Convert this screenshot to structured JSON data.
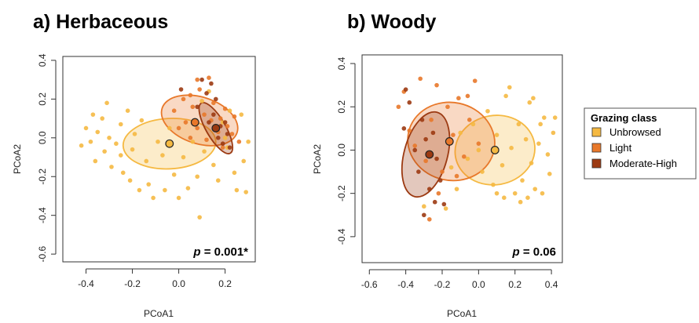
{
  "legend": {
    "title": "Grazing class",
    "entries": [
      {
        "label": "Unbrowsed",
        "color": "#f5b942"
      },
      {
        "label": "Light",
        "color": "#e8782a"
      },
      {
        "label": "Moderate-High",
        "color": "#9c3a12"
      }
    ]
  },
  "chart_data": [
    {
      "type": "scatter",
      "title": "a) Herbaceous",
      "xlabel": "PCoA1",
      "ylabel": "PCoA2",
      "xlim": [
        -0.5,
        0.33
      ],
      "ylim": [
        -0.64,
        0.42
      ],
      "xticks": [
        -0.4,
        -0.2,
        0.0,
        0.2
      ],
      "yticks": [
        -0.6,
        -0.4,
        -0.2,
        0.0,
        0.2,
        0.4
      ],
      "annotation": {
        "italic": "p",
        "text": " = 0.001*"
      },
      "series": [
        {
          "name": "Unbrowsed",
          "color": "#f5b942",
          "centroid": [
            -0.04,
            -0.03
          ],
          "ellipse": {
            "cx": -0.04,
            "cy": -0.03,
            "rx": 0.2,
            "ry": 0.13,
            "angle": 3
          },
          "points": [
            [
              -0.42,
              -0.04
            ],
            [
              -0.4,
              0.05
            ],
            [
              -0.38,
              -0.02
            ],
            [
              -0.37,
              0.12
            ],
            [
              -0.36,
              -0.12
            ],
            [
              -0.35,
              0.03
            ],
            [
              -0.33,
              0.1
            ],
            [
              -0.32,
              -0.07
            ],
            [
              -0.31,
              0.18
            ],
            [
              -0.3,
              0.0
            ],
            [
              -0.29,
              -0.15
            ],
            [
              -0.27,
              -0.03
            ],
            [
              -0.25,
              0.07
            ],
            [
              -0.24,
              -0.18
            ],
            [
              -0.22,
              0.14
            ],
            [
              -0.21,
              -0.22
            ],
            [
              -0.2,
              -0.06
            ],
            [
              -0.19,
              0.02
            ],
            [
              -0.17,
              -0.27
            ],
            [
              -0.16,
              0.09
            ],
            [
              -0.14,
              -0.12
            ],
            [
              -0.13,
              -0.24
            ],
            [
              -0.11,
              -0.31
            ],
            [
              -0.09,
              -0.02
            ],
            [
              -0.07,
              -0.09
            ],
            [
              -0.06,
              -0.27
            ],
            [
              -0.04,
              0.05
            ],
            [
              -0.02,
              -0.19
            ],
            [
              0.0,
              -0.31
            ],
            [
              0.02,
              -0.1
            ],
            [
              0.04,
              -0.26
            ],
            [
              0.06,
              -0.02
            ],
            [
              0.08,
              -0.2
            ],
            [
              0.1,
              0.19
            ],
            [
              0.11,
              -0.07
            ],
            [
              0.13,
              0.24
            ],
            [
              0.15,
              -0.14
            ],
            [
              0.17,
              -0.22
            ],
            [
              0.19,
              0.08
            ],
            [
              0.21,
              -0.05
            ],
            [
              0.22,
              0.14
            ],
            [
              0.24,
              -0.18
            ],
            [
              0.25,
              -0.27
            ],
            [
              0.27,
              0.12
            ],
            [
              0.28,
              -0.12
            ],
            [
              0.29,
              -0.28
            ],
            [
              0.3,
              -0.02
            ],
            [
              -0.25,
              -0.09
            ],
            [
              0.09,
              -0.41
            ],
            [
              0.2,
              0.0
            ]
          ]
        },
        {
          "name": "Light",
          "color": "#e8782a",
          "centroid": [
            0.07,
            0.08
          ],
          "ellipse": {
            "cx": 0.09,
            "cy": 0.09,
            "rx": 0.17,
            "ry": 0.12,
            "angle": -18
          },
          "points": [
            [
              -0.02,
              0.14
            ],
            [
              0.0,
              0.05
            ],
            [
              0.02,
              0.2
            ],
            [
              0.03,
              0.08
            ],
            [
              0.05,
              0.0
            ],
            [
              0.06,
              0.16
            ],
            [
              0.08,
              0.05
            ],
            [
              0.09,
              0.25
            ],
            [
              0.11,
              0.12
            ],
            [
              0.12,
              -0.01
            ],
            [
              0.14,
              0.09
            ],
            [
              0.15,
              0.18
            ],
            [
              0.17,
              0.03
            ],
            [
              0.18,
              0.1
            ],
            [
              0.19,
              -0.05
            ],
            [
              0.2,
              0.15
            ],
            [
              0.21,
              0.06
            ],
            [
              0.23,
              0.02
            ],
            [
              0.24,
              0.11
            ],
            [
              0.26,
              -0.02
            ],
            [
              0.08,
              0.3
            ],
            [
              0.13,
              0.31
            ],
            [
              0.05,
              0.22
            ]
          ]
        },
        {
          "name": "Moderate-High",
          "color": "#9c3a12",
          "centroid": [
            0.16,
            0.05
          ],
          "ellipse": {
            "cx": 0.16,
            "cy": 0.05,
            "rx": 0.125,
            "ry": 0.05,
            "angle": -60
          },
          "points": [
            [
              0.08,
              0.16
            ],
            [
              0.1,
              0.3
            ],
            [
              0.12,
              0.23
            ],
            [
              0.13,
              0.08
            ],
            [
              0.15,
              0.12
            ],
            [
              0.16,
              0.2
            ],
            [
              0.17,
              0.0
            ],
            [
              0.18,
              0.06
            ],
            [
              0.19,
              -0.03
            ],
            [
              0.2,
              0.08
            ],
            [
              0.21,
              0.02
            ],
            [
              0.01,
              0.25
            ],
            [
              0.22,
              -0.05
            ],
            [
              0.14,
              0.28
            ]
          ]
        }
      ]
    },
    {
      "type": "scatter",
      "title": "b) Woody",
      "xlabel": "PCoA1",
      "ylabel": "PCoA2",
      "xlim": [
        -0.64,
        0.46
      ],
      "ylim": [
        -0.52,
        0.44
      ],
      "xticks": [
        -0.6,
        -0.4,
        -0.2,
        0.0,
        0.2,
        0.4
      ],
      "yticks": [
        -0.4,
        -0.2,
        0.0,
        0.2,
        0.4
      ],
      "annotation": {
        "italic": "p",
        "text": " = 0.06"
      },
      "series": [
        {
          "name": "Unbrowsed",
          "color": "#f5b942",
          "centroid": [
            0.09,
            0.0
          ],
          "ellipse": {
            "cx": 0.09,
            "cy": 0.0,
            "rx": 0.22,
            "ry": 0.16,
            "angle": 10
          },
          "points": [
            [
              -0.1,
              0.08
            ],
            [
              -0.06,
              -0.04
            ],
            [
              -0.03,
              0.12
            ],
            [
              0.0,
              0.0
            ],
            [
              0.02,
              -0.1
            ],
            [
              0.05,
              0.18
            ],
            [
              0.08,
              -0.16
            ],
            [
              0.1,
              0.07
            ],
            [
              0.13,
              -0.07
            ],
            [
              0.15,
              0.25
            ],
            [
              0.17,
              0.29
            ],
            [
              0.18,
              0.01
            ],
            [
              0.2,
              -0.2
            ],
            [
              0.22,
              0.12
            ],
            [
              0.24,
              -0.14
            ],
            [
              0.26,
              0.05
            ],
            [
              0.28,
              0.22
            ],
            [
              0.29,
              -0.06
            ],
            [
              0.31,
              -0.18
            ],
            [
              0.33,
              0.03
            ],
            [
              0.34,
              0.12
            ],
            [
              0.36,
              0.15
            ],
            [
              0.38,
              -0.02
            ],
            [
              0.39,
              -0.11
            ],
            [
              0.41,
              0.08
            ],
            [
              0.42,
              0.15
            ],
            [
              0.3,
              0.24
            ],
            [
              0.27,
              -0.22
            ],
            [
              0.23,
              -0.24
            ],
            [
              0.1,
              -0.2
            ],
            [
              -0.12,
              -0.18
            ],
            [
              -0.18,
              -0.27
            ],
            [
              -0.3,
              -0.26
            ],
            [
              -0.15,
              -0.08
            ],
            [
              0.14,
              -0.22
            ],
            [
              0.35,
              -0.2
            ]
          ]
        },
        {
          "name": "Light",
          "color": "#e8782a",
          "centroid": [
            -0.16,
            0.04
          ],
          "ellipse": {
            "cx": -0.15,
            "cy": 0.04,
            "rx": 0.24,
            "ry": 0.18,
            "angle": -12
          },
          "points": [
            [
              -0.44,
              0.2
            ],
            [
              -0.41,
              0.27
            ],
            [
              -0.38,
              0.09
            ],
            [
              -0.35,
              0.02
            ],
            [
              -0.32,
              0.33
            ],
            [
              -0.29,
              -0.05
            ],
            [
              -0.26,
              0.14
            ],
            [
              -0.23,
              0.3
            ],
            [
              -0.2,
              -0.1
            ],
            [
              -0.17,
              0.2
            ],
            [
              -0.14,
              0.07
            ],
            [
              -0.11,
              0.24
            ],
            [
              -0.08,
              -0.03
            ],
            [
              -0.05,
              0.14
            ],
            [
              -0.02,
              0.32
            ],
            [
              0.0,
              0.03
            ],
            [
              -0.22,
              -0.2
            ],
            [
              -0.27,
              -0.32
            ],
            [
              -0.12,
              -0.12
            ],
            [
              -0.06,
              0.25
            ]
          ]
        },
        {
          "name": "Moderate-High",
          "color": "#9c3a12",
          "centroid": [
            -0.27,
            -0.02
          ],
          "ellipse": {
            "cx": -0.29,
            "cy": -0.02,
            "rx": 0.24,
            "ry": 0.1,
            "angle": 75
          },
          "points": [
            [
              -0.41,
              0.1
            ],
            [
              -0.38,
              0.22
            ],
            [
              -0.35,
              0.0
            ],
            [
              -0.33,
              -0.1
            ],
            [
              -0.31,
              0.14
            ],
            [
              -0.29,
              0.05
            ],
            [
              -0.27,
              -0.18
            ],
            [
              -0.25,
              0.08
            ],
            [
              -0.23,
              -0.04
            ],
            [
              -0.21,
              -0.14
            ],
            [
              -0.19,
              -0.25
            ],
            [
              -0.4,
              0.28
            ],
            [
              -0.3,
              -0.3
            ],
            [
              -0.24,
              -0.24
            ]
          ]
        }
      ]
    }
  ]
}
